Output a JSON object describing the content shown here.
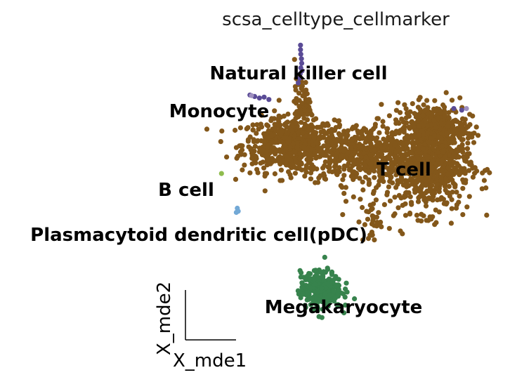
{
  "chart_data": {
    "type": "scatter",
    "title": "scsa_celltype_cellmarker",
    "xlabel": "X_mde1",
    "ylabel": "X_mde2",
    "grid": false,
    "legend": "on data",
    "xlim": [
      0,
      100
    ],
    "ylim": [
      0,
      100
    ],
    "series": [
      {
        "name": "T cell",
        "color": "#83571a",
        "clusters": [
          {
            "cx": 36,
            "cy": 66,
            "sx": 7.5,
            "sy": 4.5,
            "n": 520
          },
          {
            "cx": 58,
            "cy": 63,
            "sx": 9,
            "sy": 5,
            "n": 520
          },
          {
            "cx": 80,
            "cy": 60,
            "sx": 6.5,
            "sy": 8,
            "n": 760
          },
          {
            "cx": 82,
            "cy": 72,
            "sx": 5,
            "sy": 3.5,
            "n": 280
          },
          {
            "cx": 40,
            "cy": 80,
            "sx": 1.2,
            "sy": 4,
            "n": 60
          },
          {
            "cx": 62,
            "cy": 40,
            "sx": 2,
            "sy": 4,
            "n": 30
          }
        ]
      },
      {
        "name": "Natural killer cell",
        "color": "#5a4b96",
        "points": [
          [
            39.5,
            99
          ],
          [
            39.5,
            97.5
          ],
          [
            39.6,
            96
          ],
          [
            39.8,
            94.5
          ],
          [
            39.9,
            93
          ],
          [
            39.6,
            91.5
          ],
          [
            40,
            90.5
          ],
          [
            39.4,
            89.5
          ],
          [
            39.2,
            88
          ],
          [
            38.8,
            86.5
          ],
          [
            25,
            82
          ],
          [
            26.5,
            81.5
          ],
          [
            28,
            81.8
          ],
          [
            29.5,
            81
          ],
          [
            23.5,
            82.5
          ],
          [
            88,
            78
          ],
          [
            90.5,
            77.5
          ]
        ]
      },
      {
        "name": "Monocyte",
        "color": "#9e8fbf",
        "points": [
          [
            92,
            78
          ],
          [
            24,
            82.3
          ]
        ]
      },
      {
        "name": "B cell",
        "color": "#8fbc4e",
        "points": [
          [
            14.5,
            56.5
          ]
        ]
      },
      {
        "name": "Plasmacytoid dendritic cell(pDC)",
        "color": "#73a9d6",
        "points": [
          [
            19.5,
            45
          ],
          [
            19.8,
            44
          ],
          [
            19.2,
            43.6
          ]
        ]
      },
      {
        "name": "Megakaryocyte",
        "color": "#37834d",
        "clusters": [
          {
            "cx": 46,
            "cy": 18,
            "sx": 3.2,
            "sy": 3,
            "n": 340
          }
        ]
      }
    ],
    "annotations": [
      {
        "text": "Natural killer cell",
        "series": "Natural killer cell"
      },
      {
        "text": "Monocyte",
        "series": "Monocyte"
      },
      {
        "text": "T cell",
        "series": "T cell"
      },
      {
        "text": "B cell",
        "series": "B cell"
      },
      {
        "text": "Plasmacytoid dendritic cell(pDC)",
        "series": "Plasmacytoid dendritic cell(pDC)"
      },
      {
        "text": "Megakaryocyte",
        "series": "Megakaryocyte"
      }
    ]
  }
}
